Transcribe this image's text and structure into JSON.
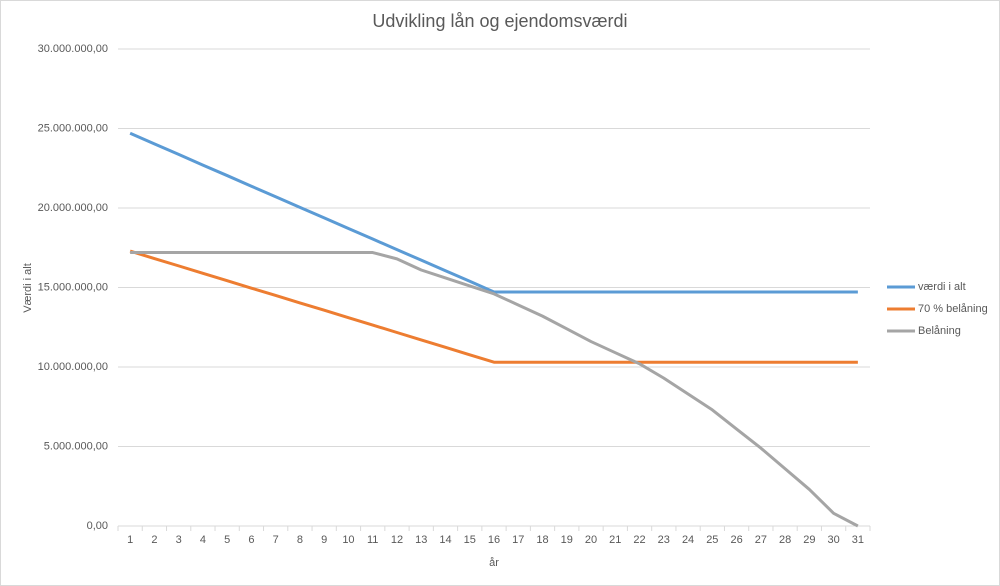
{
  "chart_data": {
    "type": "line",
    "title": "Udvikling lån og ejendomsværdi",
    "x_label": "år",
    "y_label": "Værdi i alt",
    "categories": [
      1,
      2,
      3,
      4,
      5,
      6,
      7,
      8,
      9,
      10,
      11,
      12,
      13,
      14,
      15,
      16,
      17,
      18,
      19,
      20,
      21,
      22,
      23,
      24,
      25,
      26,
      27,
      28,
      29,
      30,
      31
    ],
    "series": [
      {
        "name": "værdi i alt",
        "color": "#5b9bd5",
        "values": [
          24700000,
          24030000,
          23370000,
          22700000,
          22040000,
          21370000,
          20710000,
          20040000,
          19380000,
          18710000,
          18050000,
          17380000,
          16720000,
          16050000,
          15390000,
          14720000,
          14720000,
          14720000,
          14720000,
          14720000,
          14720000,
          14720000,
          14720000,
          14720000,
          14720000,
          14720000,
          14720000,
          14720000,
          14720000,
          14720000,
          14720000
        ]
      },
      {
        "name": "70 % belåning",
        "color": "#ed7d31",
        "values": [
          17290000,
          16820000,
          16360000,
          15890000,
          15430000,
          14960000,
          14500000,
          14030000,
          13570000,
          13100000,
          12640000,
          12170000,
          11700000,
          11240000,
          10770000,
          10300000,
          10300000,
          10300000,
          10300000,
          10300000,
          10300000,
          10300000,
          10300000,
          10300000,
          10300000,
          10300000,
          10300000,
          10300000,
          10300000,
          10300000,
          10300000
        ]
      },
      {
        "name": "Belåning",
        "color": "#a5a5a5",
        "values": [
          17200000,
          17200000,
          17200000,
          17200000,
          17200000,
          17200000,
          17200000,
          17200000,
          17200000,
          17200000,
          17200000,
          16800000,
          16100000,
          15600000,
          15100000,
          14600000,
          13900000,
          13200000,
          12400000,
          11600000,
          10900000,
          10200000,
          9300000,
          8300000,
          7300000,
          6100000,
          4900000,
          3600000,
          2300000,
          800000,
          0
        ]
      }
    ],
    "ylim": [
      0,
      30000000
    ],
    "yticks": [
      {
        "value": 0,
        "label": "0,00"
      },
      {
        "value": 5000000,
        "label": "5.000.000,00"
      },
      {
        "value": 10000000,
        "label": "10.000.000,00"
      },
      {
        "value": 15000000,
        "label": "15.000.000,00"
      },
      {
        "value": 20000000,
        "label": "20.000.000,00"
      },
      {
        "value": 25000000,
        "label": "25.000.000,00"
      },
      {
        "value": 30000000,
        "label": "30.000.000,00"
      }
    ],
    "grid": true,
    "legend": "right"
  }
}
